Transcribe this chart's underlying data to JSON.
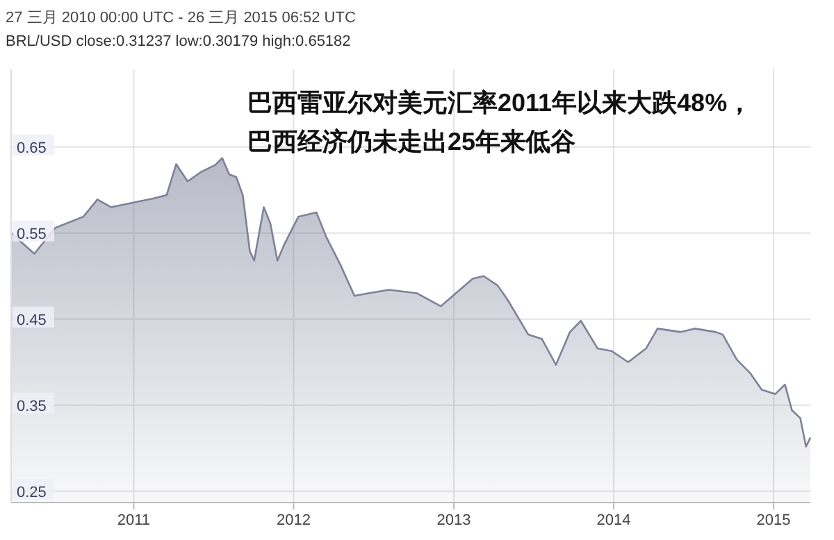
{
  "chart_data": {
    "type": "area",
    "title": "27 三月 2010 00:00 UTC - 26 三月 2015 06:52 UTC",
    "subtitle": "BRL/USD close:0.31237 low:0.30179 high:0.65182",
    "annotations": [
      "巴西雷亚尔对美元汇率2011年以来大跌48%，",
      "巴西经济仍未走出25年来低谷"
    ],
    "x": [
      "2010-03-27",
      "2010-05-19",
      "2010-07-06",
      "2010-09-08",
      "2010-10-10",
      "2010-11-10",
      "2010-12-28",
      "2011-02-14",
      "2011-03-17",
      "2011-04-08",
      "2011-05-04",
      "2011-06-04",
      "2011-07-06",
      "2011-07-22",
      "2011-08-07",
      "2011-08-23",
      "2011-09-07",
      "2011-09-23",
      "2011-10-03",
      "2011-10-25",
      "2011-11-09",
      "2011-11-25",
      "2011-12-11",
      "2012-01-12",
      "2012-02-22",
      "2012-03-16",
      "2012-04-17",
      "2012-05-19",
      "2012-06-20",
      "2012-08-06",
      "2012-10-09",
      "2012-12-02",
      "2013-02-13",
      "2013-03-10",
      "2013-04-11",
      "2013-05-03",
      "2013-06-20",
      "2013-07-21",
      "2013-08-22",
      "2013-09-23",
      "2013-10-18",
      "2013-11-25",
      "2013-12-27",
      "2014-02-03",
      "2014-03-16",
      "2014-04-11",
      "2014-06-03",
      "2014-07-05",
      "2014-08-22",
      "2014-09-07",
      "2014-10-09",
      "2014-11-09",
      "2014-12-05",
      "2015-01-05",
      "2015-01-27",
      "2015-02-12",
      "2015-03-03",
      "2015-03-16",
      "2015-03-26"
    ],
    "series": [
      {
        "color": "#7d8299",
        "values": [
          0.55,
          0.526,
          0.556,
          0.569,
          0.589,
          0.58,
          0.585,
          0.59,
          0.594,
          0.63,
          0.61,
          0.621,
          0.629,
          0.637,
          0.618,
          0.615,
          0.594,
          0.529,
          0.518,
          0.58,
          0.561,
          0.518,
          0.537,
          0.569,
          0.574,
          0.545,
          0.513,
          0.477,
          0.48,
          0.484,
          0.48,
          0.465,
          0.497,
          0.5,
          0.489,
          0.473,
          0.432,
          0.427,
          0.397,
          0.435,
          0.448,
          0.416,
          0.413,
          0.4,
          0.416,
          0.439,
          0.435,
          0.439,
          0.435,
          0.432,
          0.403,
          0.387,
          0.368,
          0.363,
          0.374,
          0.344,
          0.335,
          0.302,
          0.31237
        ]
      }
    ],
    "xlim": [
      "2010-03-27",
      "2015-03-26"
    ],
    "xticks": [
      {
        "value": "2011-01-01",
        "label": "2011"
      },
      {
        "value": "2012-01-01",
        "label": "2012"
      },
      {
        "value": "2013-01-01",
        "label": "2013"
      },
      {
        "value": "2014-01-01",
        "label": "2014"
      },
      {
        "value": "2015-01-01",
        "label": "2015"
      }
    ],
    "ylim": [
      0.237,
      0.74
    ],
    "yticks": [
      0.25,
      0.35,
      0.45,
      0.55,
      0.65
    ],
    "grid": true
  }
}
